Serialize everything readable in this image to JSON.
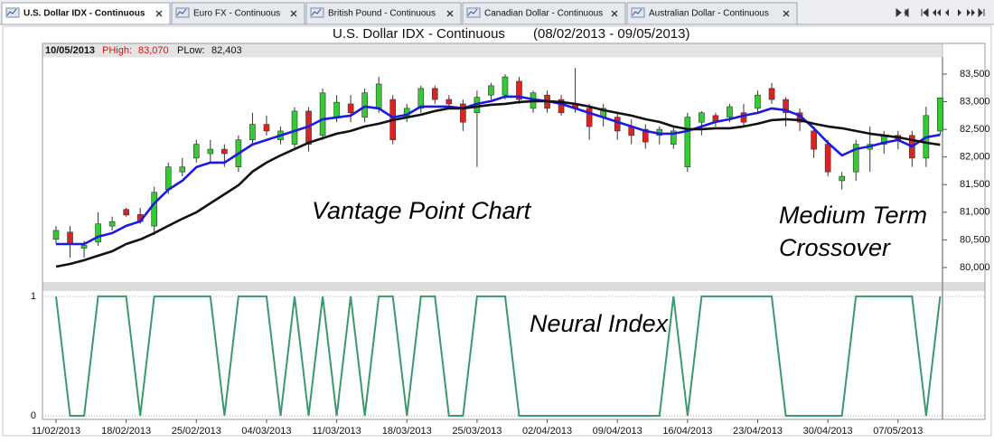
{
  "tabs": [
    "U.S. Dollar IDX - Continuous",
    "Euro FX -  Continuous",
    "British Pound -  Continuous",
    "Canadian Dollar -  Continuous",
    "Australian Dollar -  Continuous"
  ],
  "status": {
    "date": "10/05/2013",
    "high_label": "PHigh:",
    "high": "83,070",
    "low_label": "PLow:",
    "low": "82,403"
  },
  "chart_data": [
    {
      "type": "candlestick",
      "title": "U.S. Dollar IDX -  Continuous",
      "subtitle": "(08/02/2013 - 09/05/2013)",
      "annotations": [
        "Vantage Point Chart",
        "Medium Term",
        "Crossover"
      ],
      "up_color": "#33cc33",
      "down_color": "#dd2222",
      "open": [
        80510,
        80640,
        80350,
        80460,
        80750,
        81050,
        80960,
        80750,
        81410,
        81730,
        81980,
        82060,
        82140,
        81820,
        82310,
        82590,
        82310,
        82230,
        82830,
        82390,
        82720,
        82960,
        82720,
        82880,
        83040,
        82720,
        82880,
        83240,
        83040,
        82960,
        82800,
        83120,
        83120,
        83370,
        82880,
        83120,
        83040,
        82960,
        82880,
        82720,
        82720,
        82550,
        82500,
        82390,
        82230,
        81820,
        82630,
        82750,
        82720,
        82800,
        82880,
        83240,
        83040,
        82800,
        82470,
        82230,
        81570,
        81730,
        82140,
        82230,
        82390,
        82390,
        81980,
        82470
      ],
      "high": [
        80750,
        80750,
        80480,
        81000,
        80920,
        81080,
        81080,
        81460,
        81900,
        81980,
        82310,
        82310,
        82230,
        82390,
        82800,
        82750,
        82550,
        82900,
        82900,
        83240,
        83120,
        83120,
        83240,
        83450,
        83120,
        82960,
        83290,
        83290,
        83120,
        83040,
        83200,
        83340,
        83500,
        83450,
        83200,
        83200,
        83120,
        83610,
        82960,
        82960,
        82800,
        82680,
        82590,
        82550,
        82550,
        82800,
        82830,
        82800,
        82960,
        82960,
        83200,
        83340,
        83080,
        82880,
        82550,
        82310,
        81730,
        82310,
        82550,
        82470,
        82470,
        82470,
        82910,
        83070
      ],
      "low": [
        80430,
        80180,
        80180,
        80390,
        80670,
        80920,
        80790,
        80590,
        81330,
        81650,
        81900,
        81900,
        81820,
        81730,
        82230,
        82390,
        82230,
        82150,
        82100,
        82310,
        82630,
        82630,
        82630,
        82800,
        82230,
        82630,
        82800,
        82960,
        82880,
        82470,
        81820,
        83040,
        83040,
        82960,
        82800,
        82800,
        82750,
        82800,
        82310,
        82550,
        82310,
        82230,
        82150,
        82230,
        82150,
        81730,
        82390,
        82550,
        82630,
        82550,
        82800,
        82960,
        82550,
        82470,
        81980,
        81650,
        81410,
        81570,
        81730,
        82060,
        82140,
        81820,
        81820,
        82403
      ],
      "close": [
        80670,
        80430,
        80400,
        80790,
        80830,
        80950,
        80830,
        81360,
        81820,
        81820,
        82230,
        82140,
        82060,
        82310,
        82590,
        82470,
        82470,
        82830,
        82230,
        83160,
        82990,
        82800,
        83160,
        83320,
        82310,
        82880,
        83240,
        83040,
        82960,
        82630,
        83080,
        83290,
        83450,
        83040,
        83160,
        82880,
        82800,
        82880,
        82550,
        82880,
        82470,
        82390,
        82270,
        82500,
        82470,
        82720,
        82800,
        82630,
        82910,
        82630,
        83120,
        83040,
        82800,
        82630,
        82140,
        81730,
        81650,
        82230,
        82230,
        82390,
        82310,
        81980,
        82750,
        83070
      ],
      "series": [
        {
          "color": "#1a1ae0",
          "values": [
            80425,
            80425,
            80425,
            80556,
            80622,
            80753,
            80834,
            81162,
            81407,
            81571,
            81816,
            81898,
            81898,
            82061,
            82225,
            82307,
            82389,
            82470,
            82552,
            82683,
            82716,
            82748,
            82912,
            82880,
            82716,
            82765,
            82912,
            82912,
            82912,
            82880,
            82961,
            83010,
            83092,
            83092,
            83043,
            83010,
            82961,
            82880,
            82798,
            82716,
            82634,
            82552,
            82470,
            82421,
            82421,
            82470,
            82552,
            82634,
            82683,
            82748,
            82798,
            82880,
            82847,
            82748,
            82519,
            82258,
            82029,
            82143,
            82192,
            82258,
            82307,
            82192,
            82356,
            82400
          ]
        },
        {
          "color": "#111111",
          "values": [
            80016,
            80065,
            80131,
            80213,
            80294,
            80425,
            80507,
            80622,
            80753,
            80883,
            80998,
            81162,
            81325,
            81489,
            81734,
            81898,
            82029,
            82143,
            82258,
            82340,
            82421,
            82470,
            82552,
            82601,
            82667,
            82716,
            82765,
            82830,
            82880,
            82880,
            82912,
            82945,
            82961,
            82994,
            83010,
            83010,
            82994,
            82961,
            82912,
            82847,
            82798,
            82748,
            82683,
            82634,
            82552,
            82503,
            82503,
            82519,
            82519,
            82552,
            82601,
            82667,
            82683,
            82667,
            82601,
            82552,
            82519,
            82470,
            82421,
            82389,
            82356,
            82307,
            82258,
            82220
          ]
        }
      ],
      "ylim": [
        79770,
        83810
      ],
      "yticks": [
        {
          "value": 80000,
          "label": "80,000"
        },
        {
          "value": 80500,
          "label": "80,500"
        },
        {
          "value": 81000,
          "label": "81,000"
        },
        {
          "value": 81500,
          "label": "81,500"
        },
        {
          "value": 82000,
          "label": "82,000"
        },
        {
          "value": 82500,
          "label": "82,500"
        },
        {
          "value": 83000,
          "label": "83,000"
        },
        {
          "value": 83500,
          "label": "83,500"
        }
      ]
    },
    {
      "type": "line",
      "annotations": [
        "Neural Index"
      ],
      "color": "#3a9a6c",
      "categories": [
        "11/02/2013",
        null,
        null,
        null,
        null,
        "18/02/2013",
        null,
        null,
        null,
        null,
        "25/02/2013",
        null,
        null,
        null,
        null,
        "04/03/2013",
        null,
        null,
        null,
        null,
        "11/03/2013",
        null,
        null,
        null,
        null,
        "18/03/2013",
        null,
        null,
        null,
        null,
        "25/03/2013",
        null,
        null,
        null,
        null,
        "02/04/2013",
        null,
        null,
        null,
        null,
        "09/04/2013",
        null,
        null,
        null,
        null,
        "16/04/2013",
        null,
        null,
        null,
        null,
        "23/04/2013",
        null,
        null,
        null,
        null,
        "30/04/2013",
        null,
        null,
        null,
        null,
        "07/05/2013",
        null,
        null,
        null
      ],
      "values": [
        1,
        0,
        0,
        1,
        1,
        1,
        0,
        1,
        1,
        1,
        1,
        1,
        0,
        1,
        1,
        1,
        0,
        1,
        0,
        1,
        0,
        1,
        0,
        1,
        1,
        0,
        1,
        1,
        0,
        0,
        1,
        1,
        1,
        0,
        0,
        0,
        0,
        0,
        0,
        0,
        0,
        0,
        0,
        0,
        1,
        0,
        1,
        1,
        1,
        1,
        1,
        1,
        0,
        0,
        0,
        0,
        0,
        1,
        1,
        1,
        1,
        1,
        0,
        1
      ],
      "ylim": [
        -0.03,
        1.045
      ],
      "yticks": [
        0,
        1
      ]
    }
  ]
}
